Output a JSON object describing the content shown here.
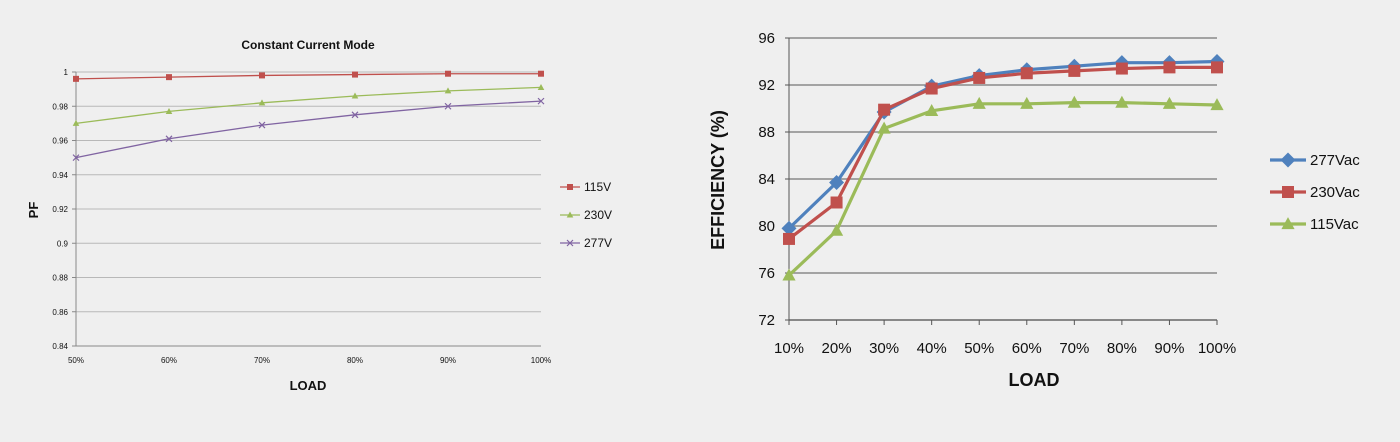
{
  "chart_data": [
    {
      "type": "line",
      "title": "Constant Current Mode",
      "xlabel": "LOAD",
      "ylabel": "PF",
      "categories": [
        "50%",
        "60%",
        "70%",
        "80%",
        "90%",
        "100%"
      ],
      "ylim": [
        0.84,
        1
      ],
      "yticks": [
        "0.84",
        "0.86",
        "0.88",
        "0.9",
        "0.92",
        "0.94",
        "0.96",
        "0.98",
        "1"
      ],
      "grid": true,
      "legend_position": "right",
      "series": [
        {
          "name": "115V",
          "color": "#c0504d",
          "marker": "square",
          "values": [
            0.996,
            0.997,
            0.998,
            0.9985,
            0.999,
            0.999
          ]
        },
        {
          "name": "230V",
          "color": "#9bbb59",
          "marker": "triangle",
          "values": [
            0.97,
            0.977,
            0.982,
            0.986,
            0.989,
            0.991
          ]
        },
        {
          "name": "277V",
          "color": "#8064a2",
          "marker": "x",
          "values": [
            0.95,
            0.961,
            0.969,
            0.975,
            0.98,
            0.983
          ]
        }
      ]
    },
    {
      "type": "line",
      "title": "",
      "xlabel": "LOAD",
      "ylabel": "EFFICIENCY (%)",
      "categories": [
        "10%",
        "20%",
        "30%",
        "40%",
        "50%",
        "60%",
        "70%",
        "80%",
        "90%",
        "100%"
      ],
      "ylim": [
        72,
        96
      ],
      "yticks": [
        "72",
        "76",
        "80",
        "84",
        "88",
        "92",
        "96"
      ],
      "grid": true,
      "legend_position": "right",
      "series": [
        {
          "name": "277Vac",
          "color": "#4f81bd",
          "marker": "diamond",
          "values": [
            79.8,
            83.7,
            89.7,
            91.9,
            92.8,
            93.3,
            93.6,
            93.9,
            93.9,
            94.0
          ]
        },
        {
          "name": "230Vac",
          "color": "#c0504d",
          "marker": "square",
          "values": [
            78.9,
            82.0,
            89.9,
            91.7,
            92.6,
            93.0,
            93.2,
            93.4,
            93.5,
            93.5
          ]
        },
        {
          "name": "115Vac",
          "color": "#9bbb59",
          "marker": "triangle",
          "values": [
            75.8,
            79.6,
            88.3,
            89.8,
            90.4,
            90.4,
            90.5,
            90.5,
            90.4,
            90.3
          ]
        }
      ]
    }
  ]
}
